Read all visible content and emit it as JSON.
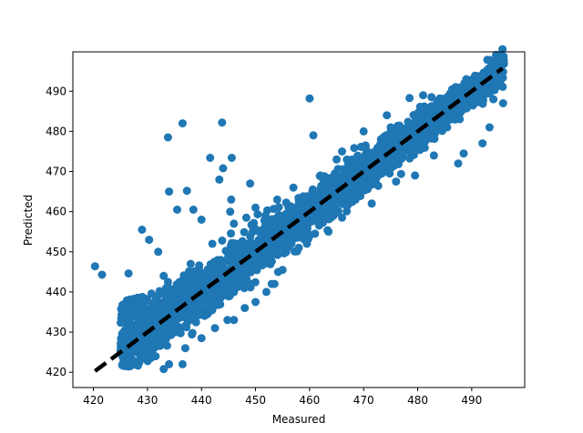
{
  "chart_data": {
    "type": "scatter",
    "title": "",
    "xlabel": "Measured",
    "ylabel": "Predicted",
    "xlim": [
      416.2,
      499.8
    ],
    "ylim": [
      416.2,
      499.8
    ],
    "xticks": [
      420,
      430,
      440,
      450,
      460,
      470,
      480,
      490
    ],
    "yticks": [
      420,
      430,
      440,
      450,
      460,
      470,
      480,
      490
    ],
    "grid": false,
    "legend": "none",
    "point_color": "#1f77b4",
    "reference_line": {
      "style": "dashed",
      "color": "#000000",
      "from": [
        420.3,
        420.3
      ],
      "to": [
        495.7,
        495.7
      ]
    },
    "trend": {
      "x_range": [
        425.0,
        496.0
      ],
      "dense_band_halfwidth": [
        6.5,
        3.5
      ]
    },
    "series": [
      {
        "values": [
          [
            420.3,
            446.4
          ],
          [
            421.6,
            444.3
          ],
          [
            426.5,
            444.6
          ],
          [
            429.0,
            455.5
          ],
          [
            430.3,
            453.0
          ],
          [
            433.8,
            478.5
          ],
          [
            434.0,
            465.0
          ],
          [
            436.5,
            482.0
          ],
          [
            437.3,
            465.2
          ],
          [
            435.5,
            460.5
          ],
          [
            438.5,
            460.5
          ],
          [
            440.0,
            458.0
          ],
          [
            443.8,
            482.2
          ],
          [
            441.6,
            473.4
          ],
          [
            444.0,
            470.8
          ],
          [
            445.6,
            473.4
          ],
          [
            445.5,
            463.0
          ],
          [
            443.3,
            468.0
          ],
          [
            449.0,
            467.0
          ],
          [
            445.3,
            460.0
          ],
          [
            448.3,
            458.5
          ],
          [
            453.5,
            442.0
          ],
          [
            460.0,
            488.2
          ],
          [
            460.7,
            479.0
          ],
          [
            465.0,
            473.0
          ],
          [
            467.5,
            470.5
          ],
          [
            469.5,
            466.0
          ],
          [
            470.0,
            480.0
          ],
          [
            474.3,
            484.0
          ],
          [
            474.8,
            471.0
          ],
          [
            476.8,
            478.5
          ],
          [
            478.3,
            480.0
          ],
          [
            478.5,
            488.3
          ],
          [
            481.0,
            489.0
          ],
          [
            484.0,
            484.0
          ],
          [
            487.0,
            491.0
          ],
          [
            489.0,
            493.0
          ],
          [
            490.5,
            492.0
          ],
          [
            493.3,
            481.0
          ],
          [
            495.8,
            487.0
          ],
          [
            492.0,
            477.0
          ],
          [
            488.5,
            474.5
          ],
          [
            487.5,
            472.0
          ],
          [
            483.0,
            474.0
          ],
          [
            479.5,
            469.0
          ],
          [
            476.0,
            467.5
          ],
          [
            471.5,
            462.0
          ],
          [
            468.5,
            463.0
          ],
          [
            466.0,
            458.5
          ],
          [
            463.5,
            455.0
          ],
          [
            461.0,
            454.5
          ],
          [
            459.5,
            452.0
          ],
          [
            463.0,
            459.0
          ],
          [
            458.0,
            451.0
          ],
          [
            455.0,
            445.5
          ],
          [
            453.0,
            442.0
          ],
          [
            450.0,
            437.5
          ],
          [
            452.0,
            440.0
          ],
          [
            448.0,
            436.0
          ],
          [
            446.0,
            433.0
          ],
          [
            444.8,
            433.0
          ],
          [
            442.5,
            431.0
          ],
          [
            440.0,
            428.5
          ],
          [
            437.0,
            426.0
          ],
          [
            436.5,
            422.0
          ],
          [
            434.0,
            422.0
          ],
          [
            433.0,
            420.8
          ],
          [
            431.5,
            424.0
          ],
          [
            429.0,
            424.5
          ],
          [
            426.5,
            426.0
          ],
          [
            433.0,
            444.0
          ],
          [
            438.0,
            447.0
          ],
          [
            442.0,
            452.0
          ],
          [
            446.0,
            457.0
          ],
          [
            450.0,
            461.0
          ],
          [
            454.0,
            463.0
          ],
          [
            457.0,
            466.0
          ],
          [
            462.0,
            469.0
          ],
          [
            466.0,
            475.0
          ],
          [
            475.0,
            481.0
          ],
          [
            480.0,
            483.5
          ],
          [
            486.0,
            487.0
          ],
          [
            491.0,
            490.0
          ],
          [
            494.0,
            488.0
          ],
          [
            432.0,
            450.0
          ]
        ]
      }
    ]
  }
}
